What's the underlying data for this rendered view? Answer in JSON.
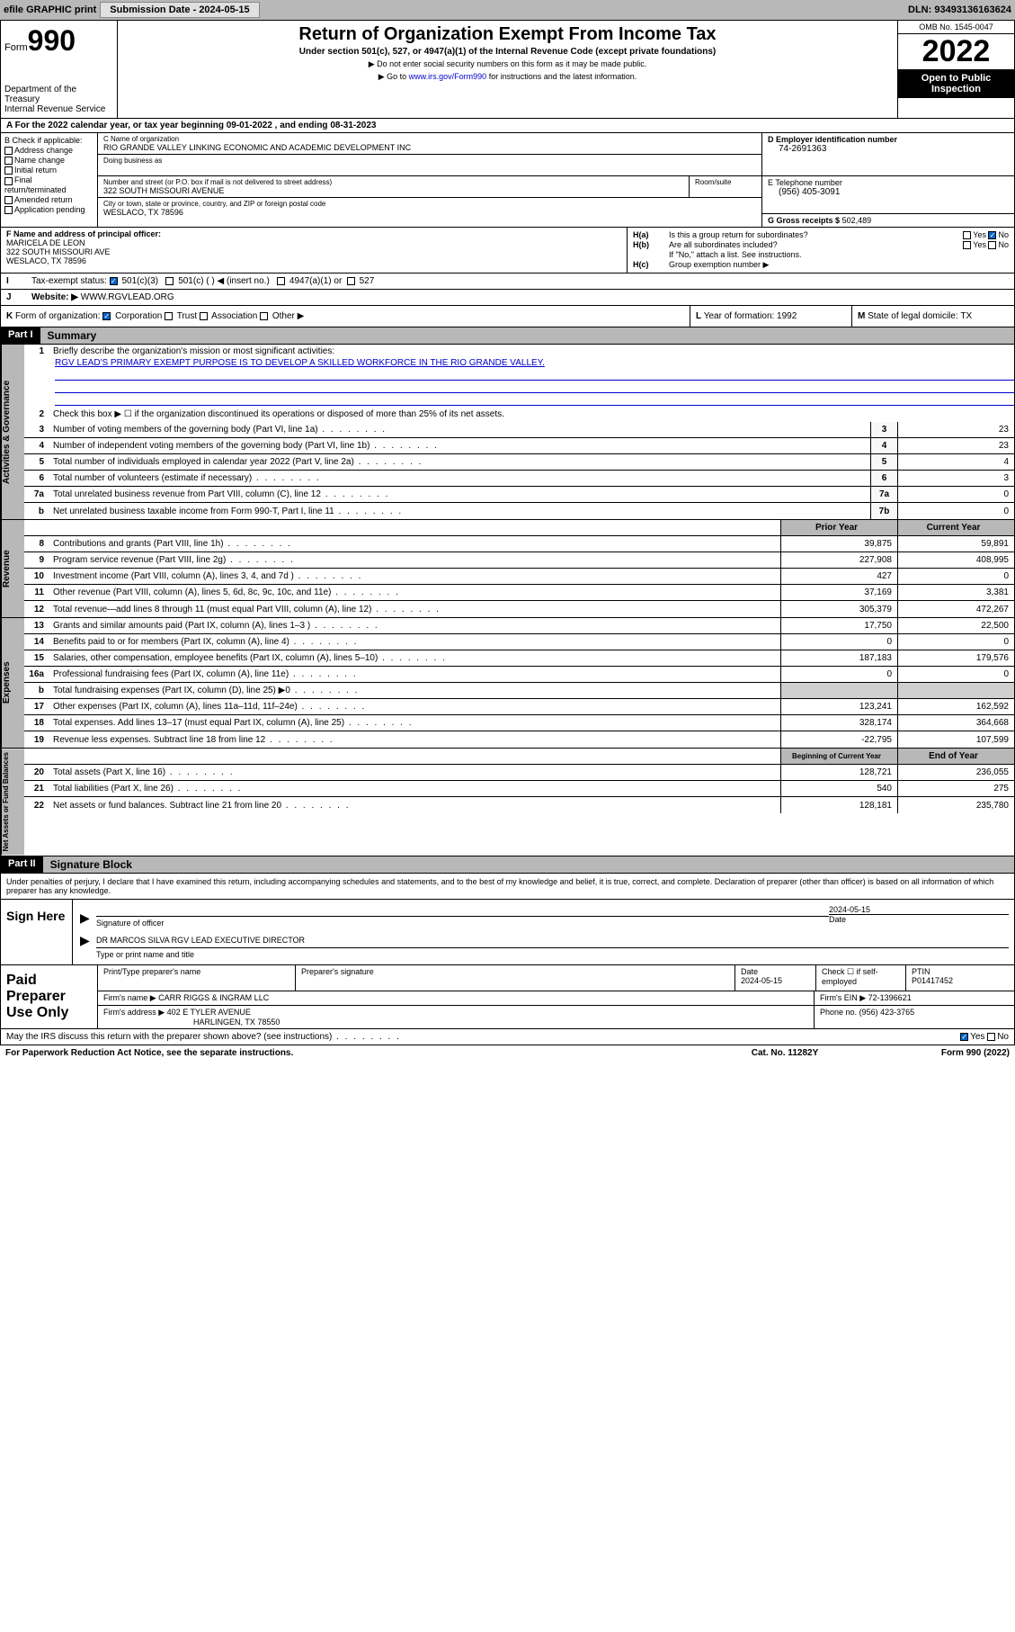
{
  "topbar": {
    "efile": "efile GRAPHIC print",
    "submission": "Submission Date - 2024-05-15",
    "dln": "DLN: 93493136163624"
  },
  "header": {
    "form_prefix": "Form",
    "form_num": "990",
    "title": "Return of Organization Exempt From Income Tax",
    "subtitle": "Under section 501(c), 527, or 4947(a)(1) of the Internal Revenue Code (except private foundations)",
    "instr1": "▶ Do not enter social security numbers on this form as it may be made public.",
    "instr2_pre": "▶ Go to ",
    "instr2_link": "www.irs.gov/Form990",
    "instr2_post": " for instructions and the latest information.",
    "dept": "Department of the Treasury",
    "irs": "Internal Revenue Service",
    "omb": "OMB No. 1545-0047",
    "year": "2022",
    "public": "Open to Public Inspection"
  },
  "row_a": "A For the 2022 calendar year, or tax year beginning 09-01-2022   , and ending 08-31-2023",
  "section_b": {
    "hdr": "B Check if applicable:",
    "opts": [
      "Address change",
      "Name change",
      "Initial return",
      "Final return/terminated",
      "Amended return",
      "Application pending"
    ]
  },
  "section_c": {
    "name_lbl": "C Name of organization",
    "name": "RIO GRANDE VALLEY LINKING ECONOMIC AND ACADEMIC DEVELOPMENT INC",
    "dba_lbl": "Doing business as",
    "addr_lbl": "Number and street (or P.O. box if mail is not delivered to street address)",
    "addr": "322 SOUTH MISSOURI AVENUE",
    "suite_lbl": "Room/suite",
    "city_lbl": "City or town, state or province, country, and ZIP or foreign postal code",
    "city": "WESLACO, TX  78596"
  },
  "section_d": {
    "ein_lbl": "D Employer identification number",
    "ein": "74-2691363",
    "phone_lbl": "E Telephone number",
    "phone": "(956) 405-3091",
    "gross_lbl": "G Gross receipts $",
    "gross": "502,489"
  },
  "section_f": {
    "lbl": "F Name and address of principal officer:",
    "name": "MARICELA DE LEON",
    "addr1": "322 SOUTH MISSOURI AVE",
    "addr2": "WESLACO, TX  78596"
  },
  "section_h": {
    "a_lbl": "H(a)",
    "a_txt": "Is this a group return for subordinates?",
    "b_lbl": "H(b)",
    "b_txt": "Are all subordinates included?",
    "note": "If \"No,\" attach a list. See instructions.",
    "c_lbl": "H(c)",
    "c_txt": "Group exemption number ▶"
  },
  "row_i": {
    "lbl": "I",
    "txt": "Tax-exempt status:",
    "opts": [
      "501(c)(3)",
      "501(c) (  ) ◀ (insert no.)",
      "4947(a)(1) or",
      "527"
    ]
  },
  "row_j": {
    "lbl": "J",
    "txt": "Website: ▶",
    "val": "WWW.RGVLEAD.ORG"
  },
  "row_k": {
    "lbl": "K",
    "txt": "Form of organization:",
    "opts": [
      "Corporation",
      "Trust",
      "Association",
      "Other ▶"
    ],
    "l_lbl": "L",
    "l_txt": "Year of formation: 1992",
    "m_lbl": "M",
    "m_txt": "State of legal domicile: TX"
  },
  "part1": {
    "hdr": "Part I",
    "title": "Summary"
  },
  "governance": {
    "vtab": "Activities & Governance",
    "l1_num": "1",
    "l1_txt": "Briefly describe the organization's mission or most significant activities:",
    "l1_val": "RGV LEAD'S PRIMARY EXEMPT PURPOSE IS TO DEVELOP A SKILLED WORKFORCE IN THE RIO GRANDE VALLEY.",
    "l2_num": "2",
    "l2_txt": "Check this box ▶ ☐  if the organization discontinued its operations or disposed of more than 25% of its net assets.",
    "lines": [
      {
        "n": "3",
        "t": "Number of voting members of the governing body (Part VI, line 1a)",
        "b": "3",
        "v": "23"
      },
      {
        "n": "4",
        "t": "Number of independent voting members of the governing body (Part VI, line 1b)",
        "b": "4",
        "v": "23"
      },
      {
        "n": "5",
        "t": "Total number of individuals employed in calendar year 2022 (Part V, line 2a)",
        "b": "5",
        "v": "4"
      },
      {
        "n": "6",
        "t": "Total number of volunteers (estimate if necessary)",
        "b": "6",
        "v": "3"
      },
      {
        "n": "7a",
        "t": "Total unrelated business revenue from Part VIII, column (C), line 12",
        "b": "7a",
        "v": "0"
      },
      {
        "n": "b",
        "t": "Net unrelated business taxable income from Form 990-T, Part I, line 11",
        "b": "7b",
        "v": "0"
      }
    ]
  },
  "revenue": {
    "vtab": "Revenue",
    "hdr_prior": "Prior Year",
    "hdr_current": "Current Year",
    "lines": [
      {
        "n": "8",
        "t": "Contributions and grants (Part VIII, line 1h)",
        "p": "39,875",
        "c": "59,891"
      },
      {
        "n": "9",
        "t": "Program service revenue (Part VIII, line 2g)",
        "p": "227,908",
        "c": "408,995"
      },
      {
        "n": "10",
        "t": "Investment income (Part VIII, column (A), lines 3, 4, and 7d )",
        "p": "427",
        "c": "0"
      },
      {
        "n": "11",
        "t": "Other revenue (Part VIII, column (A), lines 5, 6d, 8c, 9c, 10c, and 11e)",
        "p": "37,169",
        "c": "3,381"
      },
      {
        "n": "12",
        "t": "Total revenue—add lines 8 through 11 (must equal Part VIII, column (A), line 12)",
        "p": "305,379",
        "c": "472,267"
      }
    ]
  },
  "expenses": {
    "vtab": "Expenses",
    "lines": [
      {
        "n": "13",
        "t": "Grants and similar amounts paid (Part IX, column (A), lines 1–3 )",
        "p": "17,750",
        "c": "22,500"
      },
      {
        "n": "14",
        "t": "Benefits paid to or for members (Part IX, column (A), line 4)",
        "p": "0",
        "c": "0"
      },
      {
        "n": "15",
        "t": "Salaries, other compensation, employee benefits (Part IX, column (A), lines 5–10)",
        "p": "187,183",
        "c": "179,576"
      },
      {
        "n": "16a",
        "t": "Professional fundraising fees (Part IX, column (A), line 11e)",
        "p": "0",
        "c": "0"
      },
      {
        "n": "b",
        "t": "Total fundraising expenses (Part IX, column (D), line 25) ▶0",
        "p": "",
        "c": "",
        "gray": true
      },
      {
        "n": "17",
        "t": "Other expenses (Part IX, column (A), lines 11a–11d, 11f–24e)",
        "p": "123,241",
        "c": "162,592"
      },
      {
        "n": "18",
        "t": "Total expenses. Add lines 13–17 (must equal Part IX, column (A), line 25)",
        "p": "328,174",
        "c": "364,668"
      },
      {
        "n": "19",
        "t": "Revenue less expenses. Subtract line 18 from line 12",
        "p": "-22,795",
        "c": "107,599"
      }
    ]
  },
  "netassets": {
    "vtab": "Net Assets or Fund Balances",
    "hdr_begin": "Beginning of Current Year",
    "hdr_end": "End of Year",
    "lines": [
      {
        "n": "20",
        "t": "Total assets (Part X, line 16)",
        "p": "128,721",
        "c": "236,055"
      },
      {
        "n": "21",
        "t": "Total liabilities (Part X, line 26)",
        "p": "540",
        "c": "275"
      },
      {
        "n": "22",
        "t": "Net assets or fund balances. Subtract line 21 from line 20",
        "p": "128,181",
        "c": "235,780"
      }
    ]
  },
  "part2": {
    "hdr": "Part II",
    "title": "Signature Block",
    "decl": "Under penalties of perjury, I declare that I have examined this return, including accompanying schedules and statements, and to the best of my knowledge and belief, it is true, correct, and complete. Declaration of preparer (other than officer) is based on all information of which preparer has any knowledge."
  },
  "sign": {
    "lbl": "Sign Here",
    "sig_lbl": "Signature of officer",
    "date": "2024-05-15",
    "date_lbl": "Date",
    "name": "DR MARCOS SILVA  RGV LEAD EXECUTIVE DIRECTOR",
    "name_lbl": "Type or print name and title"
  },
  "preparer": {
    "lbl": "Paid Preparer Use Only",
    "h1": "Print/Type preparer's name",
    "h2": "Preparer's signature",
    "h3": "Date",
    "h3v": "2024-05-15",
    "h4": "Check ☐ if self-employed",
    "h5": "PTIN",
    "h5v": "P01417452",
    "firm_lbl": "Firm's name    ▶",
    "firm": "CARR RIGGS & INGRAM LLC",
    "ein_lbl": "Firm's EIN ▶",
    "ein": "72-1396621",
    "addr_lbl": "Firm's address ▶",
    "addr1": "402 E TYLER AVENUE",
    "addr2": "HARLINGEN, TX 78550",
    "phone_lbl": "Phone no.",
    "phone": "(956) 423-3765"
  },
  "footer": {
    "discuss": "May the IRS discuss this return with the preparer shown above? (see instructions)",
    "paperwork": "For Paperwork Reduction Act Notice, see the separate instructions.",
    "cat": "Cat. No. 11282Y",
    "form": "Form 990 (2022)"
  }
}
